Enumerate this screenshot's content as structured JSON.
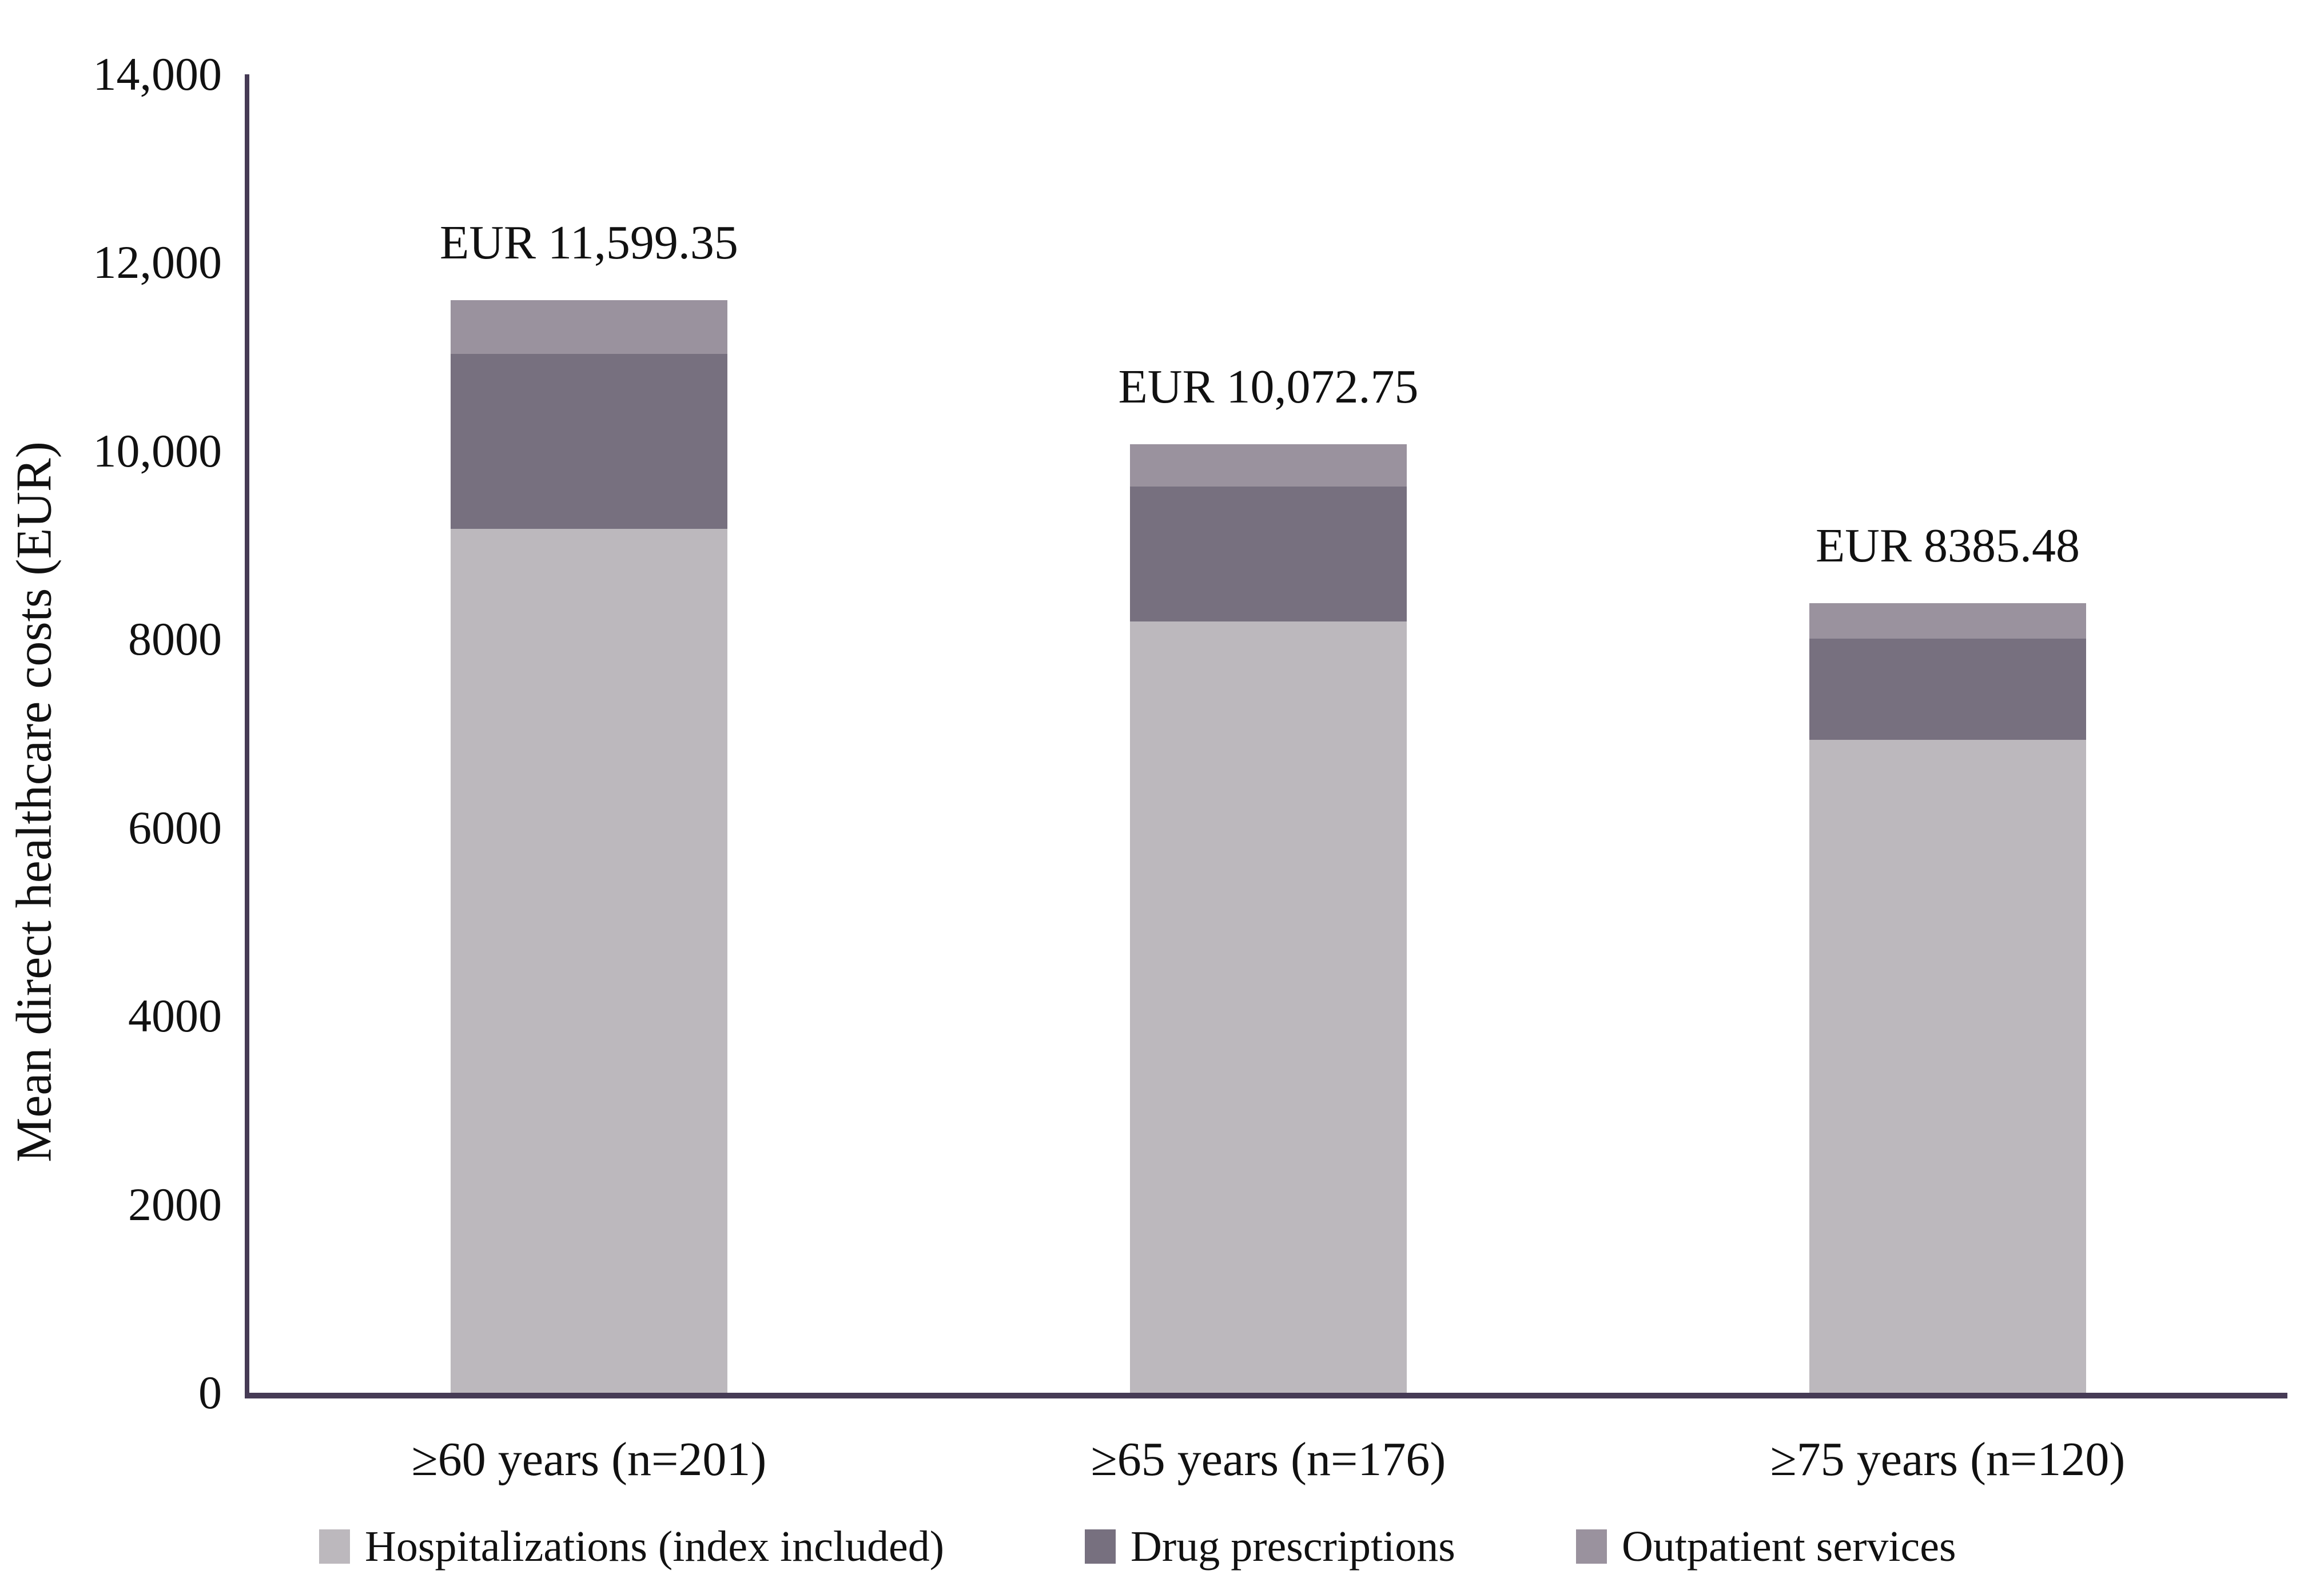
{
  "figure": {
    "background": "#ffffff",
    "axis_color": "#463b55",
    "text_color": "#111111"
  },
  "chart_data": {
    "type": "bar",
    "stacked": true,
    "title": "",
    "xlabel": "",
    "ylabel": "Mean direct healthcare costs (EUR)",
    "ylim": [
      0,
      14000
    ],
    "grid": false,
    "legend_position": "bottom",
    "y_ticks": [
      {
        "value": 0,
        "label": "0"
      },
      {
        "value": 2000,
        "label": "2000"
      },
      {
        "value": 4000,
        "label": "4000"
      },
      {
        "value": 6000,
        "label": "6000"
      },
      {
        "value": 8000,
        "label": "8000"
      },
      {
        "value": 10000,
        "label": "10,000"
      },
      {
        "value": 12000,
        "label": "12,000"
      },
      {
        "value": 14000,
        "label": "14,000"
      }
    ],
    "categories": [
      "≥60 years (n=201)",
      "≥65 years (n=176)",
      "≥75 years (n=120)"
    ],
    "series": [
      {
        "name": "Hospitalizations (index included)",
        "color": "#bcb8bd",
        "values": [
          9175,
          8190,
          6935
        ]
      },
      {
        "name": "Drug prescriptions",
        "color": "#77707f",
        "values": [
          1855,
          1435,
          1070
        ]
      },
      {
        "name": "Outpatient services",
        "color": "#9a929e",
        "values": [
          569.35,
          447.75,
          380.48
        ]
      }
    ],
    "totals": [
      11599.35,
      10072.75,
      8385.48
    ],
    "total_labels": [
      "EUR 11,599.35",
      "EUR 10,072.75",
      "EUR 8385.48"
    ]
  }
}
